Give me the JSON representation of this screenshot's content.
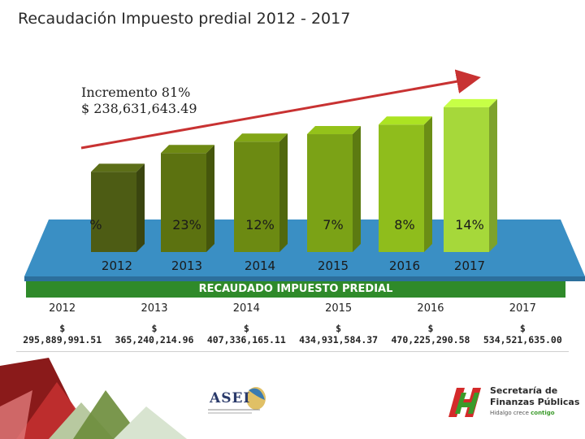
{
  "title": "Recaudación Impuesto predial 2012 - 2017",
  "increment": {
    "label": "Incremento 81%",
    "amount": "$ 238,631,643.49"
  },
  "chart_data": {
    "type": "bar",
    "title": "Recaudación Impuesto predial 2012 - 2017",
    "categories": [
      "2012",
      "2013",
      "2014",
      "2015",
      "2016",
      "2017"
    ],
    "values": [
      295889991.51,
      365240214.96,
      407336165.11,
      434931584.37,
      470225290.58,
      534521635.0
    ],
    "growth_labels": [
      "%",
      "23%",
      "12%",
      "7%",
      "8%",
      "14%"
    ],
    "ylim": [
      0,
      600000000
    ],
    "trend_arrow": true
  },
  "colors": {
    "bars": [
      "#4d5c14",
      "#5c7210",
      "#6c8a12",
      "#7ba216",
      "#8fbd1c",
      "#a6d83a"
    ],
    "platform": "#3a8fc4",
    "band": "#2f8a2a",
    "arrow": "#c83232"
  },
  "band_label": "RECAUDADO IMPUESTO PREDIAL",
  "table": {
    "years": [
      "2012",
      "2013",
      "2014",
      "2015",
      "2016",
      "2017"
    ],
    "amounts": [
      {
        "currency": "$",
        "value": "295,889,991.51"
      },
      {
        "currency": "$",
        "value": "365,240,214.96"
      },
      {
        "currency": "$",
        "value": "407,336,165.11"
      },
      {
        "currency": "$",
        "value": "434,931,584.37"
      },
      {
        "currency": "$",
        "value": "470,225,290.58"
      },
      {
        "currency": "$",
        "value": "534,521,635.00"
      }
    ]
  },
  "footer": {
    "asei": "ASEI",
    "secretaria_line1": "Secretaría de",
    "secretaria_line2": "Finanzas Públicas",
    "tagline_a": "Hidalgo crece",
    "tagline_b": "contigo"
  }
}
